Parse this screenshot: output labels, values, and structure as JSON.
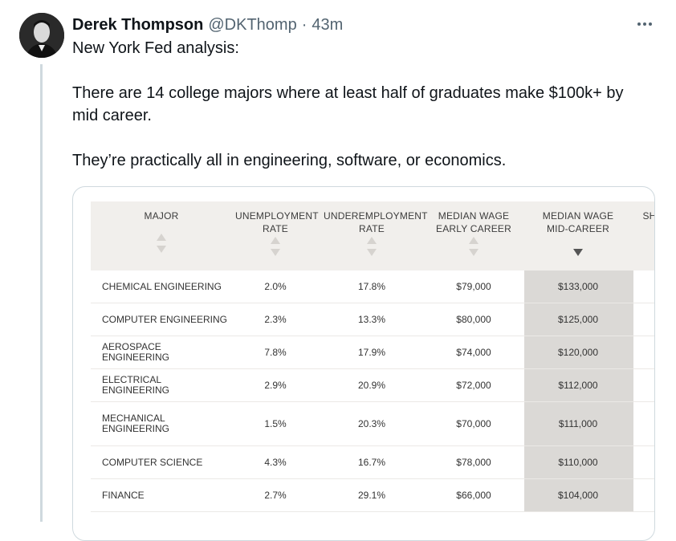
{
  "author": {
    "name": "Derek Thompson",
    "handle": "@DKThomp",
    "separator": "·",
    "time": "43m"
  },
  "tweet": {
    "line1": "New York Fed analysis:",
    "line2": "There are 14 college majors where at least half of graduates make $100k+ by mid career.",
    "line3": "They’re practically all in engineering, software, or economics."
  },
  "icons": {
    "more": "more-horizontal-icon",
    "avatar": "profile-photo"
  },
  "table": {
    "headers": [
      "MAJOR",
      "UNEMPLOYMENT\nRATE",
      "UNDEREMPLOYMENT\nRATE",
      "MEDIAN WAGE\nEARLY CAREER",
      "MEDIAN WAGE\nMID-CAREER",
      "SH"
    ],
    "rows": [
      {
        "major": "CHEMICAL ENGINEERING",
        "unemp": "2.0%",
        "underemp": "17.8%",
        "early": "$79,000",
        "mid": "$133,000"
      },
      {
        "major": "COMPUTER ENGINEERING",
        "unemp": "2.3%",
        "underemp": "13.3%",
        "early": "$80,000",
        "mid": "$125,000"
      },
      {
        "major": "AEROSPACE ENGINEERING",
        "unemp": "7.8%",
        "underemp": "17.9%",
        "early": "$74,000",
        "mid": "$120,000"
      },
      {
        "major": "ELECTRICAL ENGINEERING",
        "unemp": "2.9%",
        "underemp": "20.9%",
        "early": "$72,000",
        "mid": "$112,000"
      },
      {
        "major": "MECHANICAL\nENGINEERING",
        "unemp": "1.5%",
        "underemp": "20.3%",
        "early": "$70,000",
        "mid": "$111,000"
      },
      {
        "major": "COMPUTER SCIENCE",
        "unemp": "4.3%",
        "underemp": "16.7%",
        "early": "$78,000",
        "mid": "$110,000"
      },
      {
        "major": "FINANCE",
        "unemp": "2.7%",
        "underemp": "29.1%",
        "early": "$66,000",
        "mid": "$104,000"
      }
    ],
    "highlight_color": "#dbd9d6",
    "header_bg": "#f1efec"
  }
}
